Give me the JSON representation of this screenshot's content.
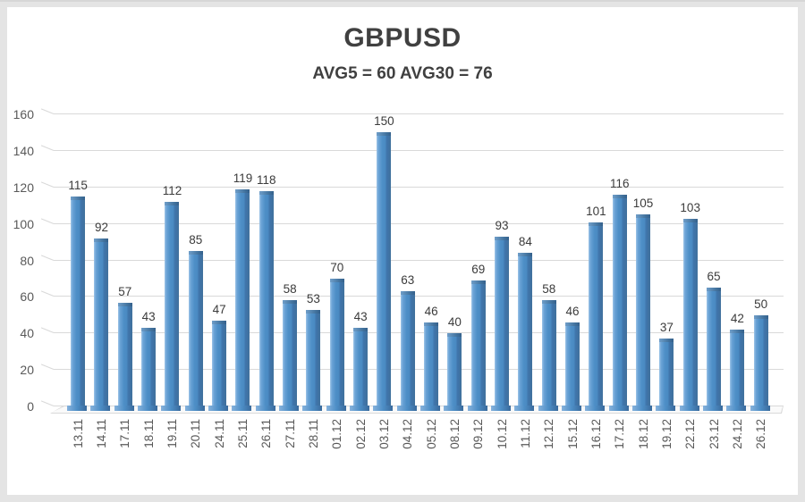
{
  "window": {
    "background": "#ffffff",
    "frame_color": "#e4e4e4"
  },
  "chart_data": {
    "type": "bar",
    "title": "GBPUSD",
    "subtitle": "AVG5 = 60 AVG30 = 76",
    "categories": [
      "13.11",
      "14.11",
      "17.11",
      "18.11",
      "19.11",
      "20.11",
      "24.11",
      "25.11",
      "26.11",
      "27.11",
      "28.11",
      "01.12",
      "02.12",
      "03.12",
      "04.12",
      "05.12",
      "08.12",
      "09.12",
      "10.12",
      "11.12",
      "12.12",
      "15.12",
      "16.12",
      "17.12",
      "18.12",
      "19.12",
      "22.12",
      "23.12",
      "24.12",
      "26.12"
    ],
    "values": [
      115,
      92,
      57,
      43,
      112,
      85,
      47,
      119,
      118,
      58,
      53,
      70,
      43,
      150,
      63,
      46,
      40,
      69,
      93,
      84,
      58,
      46,
      101,
      116,
      105,
      37,
      103,
      65,
      42,
      50
    ],
    "ylim": [
      0,
      160
    ],
    "y_ticks": [
      0,
      20,
      40,
      60,
      80,
      100,
      120,
      140,
      160
    ],
    "xlabel": "",
    "ylabel": "",
    "grid": "horizontal",
    "legend": "none",
    "style": "3d-column",
    "bar_color": "#4e8fc7",
    "bar_highlight_color": "#9ec5e8",
    "bar_side_color": "#41719c",
    "bar_top_color": "#35618c",
    "value_label_color": "#3b3b3b",
    "axis_label_color": "#595959",
    "gridline_color": "#d9d9d9",
    "title_color": "#404040"
  }
}
